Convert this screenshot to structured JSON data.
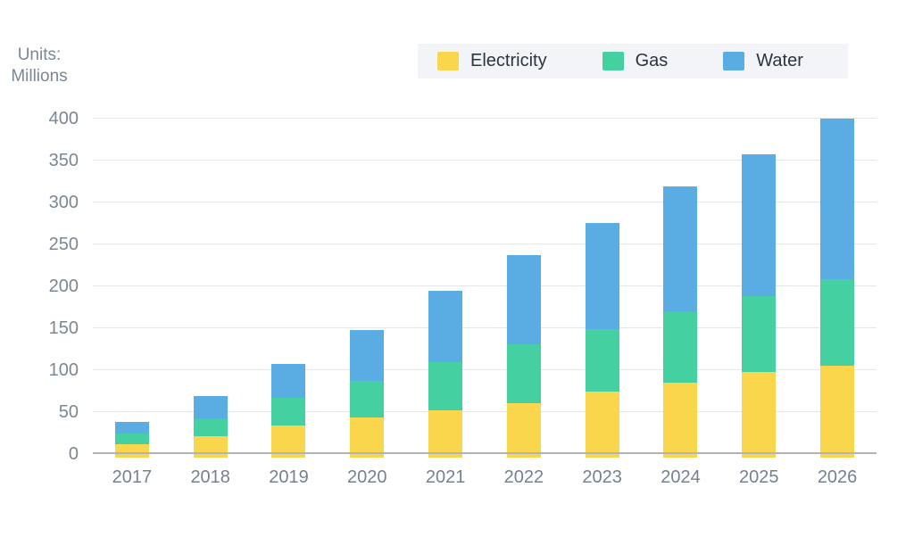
{
  "y_axis_title": {
    "line1": "Units:",
    "line2": "Millions"
  },
  "legend": {
    "items": [
      {
        "label": "Electricity",
        "color": "#fad64c"
      },
      {
        "label": "Gas",
        "color": "#45d0a1"
      },
      {
        "label": "Water",
        "color": "#5aade2"
      }
    ]
  },
  "chart_data": {
    "type": "bar",
    "stacked": true,
    "title": "",
    "ylabel": "Units: Millions",
    "categories": [
      "2017",
      "2018",
      "2019",
      "2020",
      "2021",
      "2022",
      "2023",
      "2024",
      "2025",
      "2026"
    ],
    "series": [
      {
        "name": "Electricity",
        "color": "#fad64c",
        "values": [
          12,
          21,
          34,
          44,
          52,
          61,
          75,
          85,
          98,
          105
        ]
      },
      {
        "name": "Gas",
        "color": "#45d0a1",
        "values": [
          12,
          22,
          33,
          43,
          58,
          70,
          74,
          85,
          90,
          104
        ]
      },
      {
        "name": "Water",
        "color": "#5aade2",
        "values": [
          14,
          26,
          41,
          61,
          85,
          106,
          127,
          149,
          170,
          191
        ]
      }
    ],
    "totals": [
      38,
      69,
      108,
      148,
      195,
      237,
      276,
      319,
      358,
      400
    ],
    "ylim": [
      0,
      400
    ],
    "ytick_step": 50,
    "grid": true,
    "legend_position": "top"
  },
  "colors": {
    "background": "#ffffff",
    "gridline": "#e4e7ea",
    "axis_line": "#aeb4ba",
    "tick_label": "#7c8794",
    "x_label": "#76818e",
    "legend_text": "#2b3440",
    "legend_background": "#f2f4f8"
  }
}
